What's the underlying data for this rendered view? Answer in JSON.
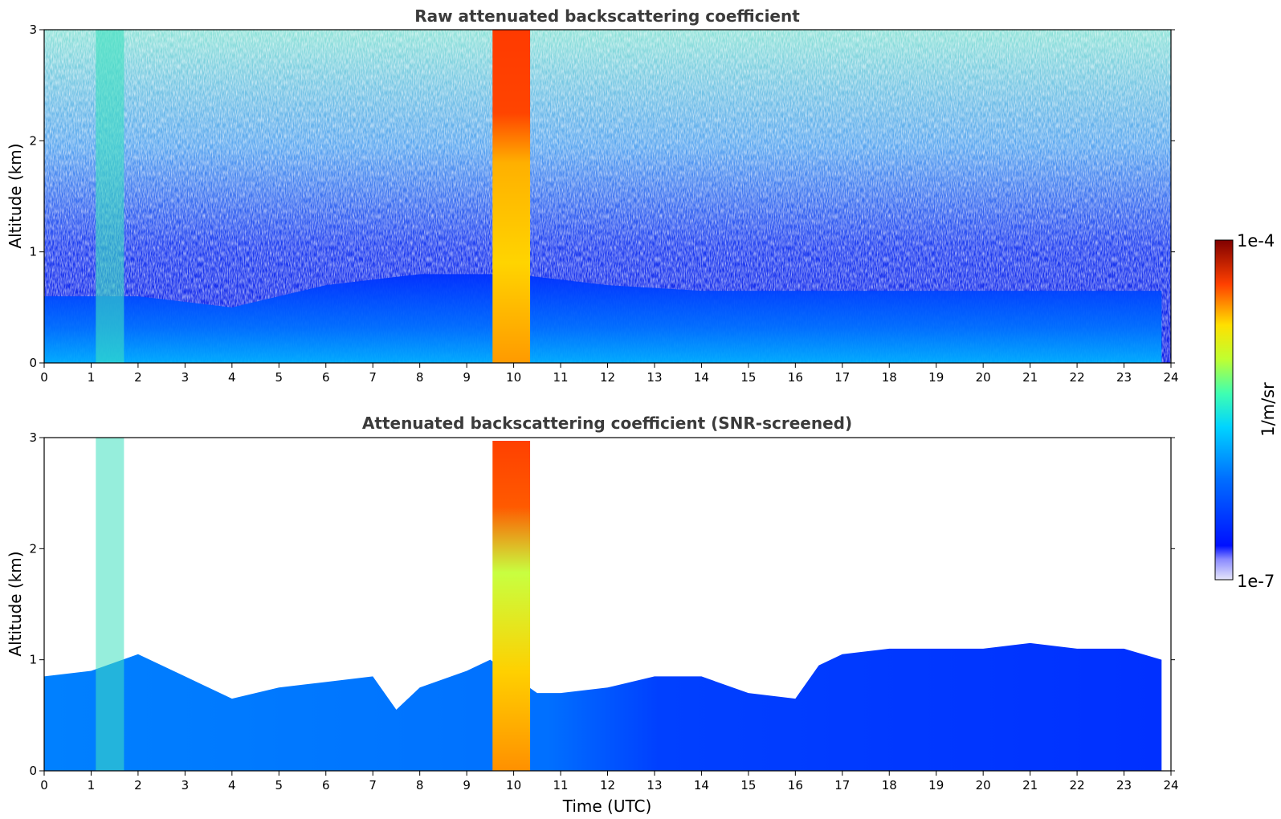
{
  "chart_data": [
    {
      "type": "heatmap",
      "title": "Raw attenuated backscattering coefficient",
      "xlabel": "",
      "ylabel": "Altitude (km)",
      "xlim": [
        0,
        24
      ],
      "ylim": [
        0,
        3
      ],
      "xticks": [
        "0",
        "1",
        "2",
        "3",
        "4",
        "5",
        "6",
        "7",
        "8",
        "9",
        "10",
        "11",
        "12",
        "13",
        "14",
        "15",
        "16",
        "17",
        "18",
        "19",
        "20",
        "21",
        "22",
        "23",
        "24"
      ],
      "yticks": [
        "0",
        "1",
        "2",
        "3"
      ],
      "features": [
        {
          "label": "boundary layer top (km)",
          "time": [
            0,
            2,
            4,
            6,
            8,
            10,
            12,
            14,
            16,
            18,
            20,
            22,
            23.8
          ],
          "altitude": [
            0.6,
            0.6,
            0.5,
            0.7,
            0.8,
            0.8,
            0.7,
            0.65,
            0.65,
            0.65,
            0.65,
            0.65,
            0.65
          ]
        },
        {
          "label": "precipitation column",
          "time_range": [
            9.55,
            10.35
          ],
          "altitude_range": [
            0,
            3
          ]
        },
        {
          "label": "cloud column",
          "time_range": [
            1.1,
            1.7
          ],
          "altitude_range": [
            0,
            3
          ]
        }
      ]
    },
    {
      "type": "heatmap",
      "title": "Attenuated backscattering coefficient (SNR-screened)",
      "xlabel": "Time (UTC)",
      "ylabel": "Altitude (km)",
      "xlim": [
        0,
        24
      ],
      "ylim": [
        0,
        3
      ],
      "xticks": [
        "0",
        "1",
        "2",
        "3",
        "4",
        "5",
        "6",
        "7",
        "8",
        "9",
        "10",
        "11",
        "12",
        "13",
        "14",
        "15",
        "16",
        "17",
        "18",
        "19",
        "20",
        "21",
        "22",
        "23",
        "24"
      ],
      "yticks": [
        "0",
        "1",
        "2",
        "3"
      ],
      "screened_top_km": {
        "time": [
          0,
          1,
          2,
          3,
          4,
          5,
          6,
          7,
          7.5,
          8,
          9,
          9.5,
          10.5,
          11,
          12,
          13,
          14,
          15,
          16,
          16.5,
          17,
          18,
          19,
          20,
          21,
          22,
          23,
          23.8
        ],
        "altitude": [
          0.85,
          0.9,
          1.05,
          0.85,
          0.65,
          0.75,
          0.8,
          0.85,
          0.55,
          0.75,
          0.9,
          1.0,
          0.7,
          0.7,
          0.75,
          0.85,
          0.85,
          0.7,
          0.65,
          0.95,
          1.05,
          1.1,
          1.1,
          1.1,
          1.15,
          1.1,
          1.1,
          1.0
        ]
      }
    }
  ],
  "colorbar": {
    "label": "1/m/sr",
    "max_label": "1e-4",
    "min_label": "1e-7",
    "scale": "log",
    "colormap": "jet"
  },
  "colors": {
    "low": "#0024ff",
    "mid_low": "#00a8ff",
    "mid": "#5cff9e",
    "mid_high": "#ffee00",
    "high": "#ff3000",
    "max": "#8b0000"
  }
}
